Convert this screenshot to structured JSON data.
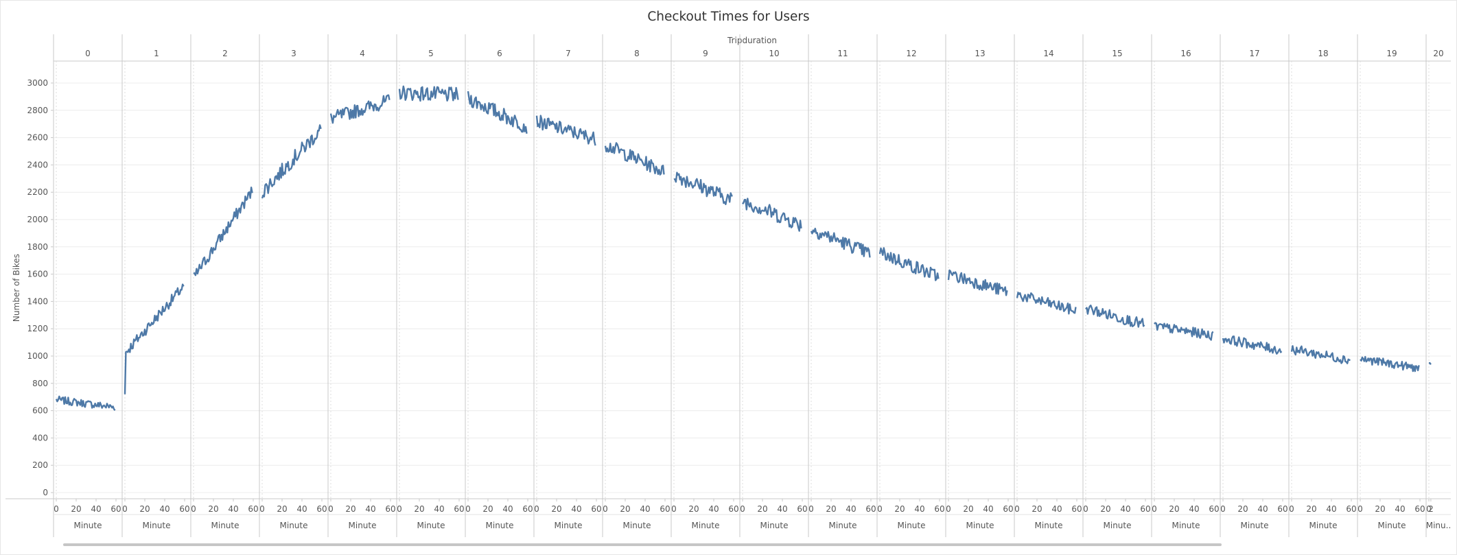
{
  "chart_data": {
    "type": "line",
    "title": "Checkout Times for Users",
    "column_header": "Tripduration",
    "ylabel": "Number of Bikes",
    "xlabel": "Minute",
    "last_panel_xlabel": "Minu..",
    "ylim": [
      0,
      3000
    ],
    "yticks": [
      0,
      200,
      400,
      600,
      800,
      1000,
      1200,
      1400,
      1600,
      1800,
      2000,
      2200,
      2400,
      2600,
      2800,
      3000
    ],
    "xticks": [
      0,
      20,
      40,
      60
    ],
    "last_panel_xticks": [
      0,
      2
    ],
    "color": "#4e79a7",
    "panels": [
      {
        "duration": "0",
        "start": 680,
        "end": 625,
        "mean": 665,
        "noise": 28
      },
      {
        "duration": "1",
        "start": 1020,
        "end": 1510,
        "mean": null,
        "noise": 40
      },
      {
        "duration": "2",
        "start": 1570,
        "end": 2210,
        "mean": null,
        "noise": 45
      },
      {
        "duration": "3",
        "start": 2200,
        "end": 2660,
        "mean": null,
        "noise": 55
      },
      {
        "duration": "4",
        "start": 2740,
        "end": 2870,
        "mean": null,
        "noise": 50
      },
      {
        "duration": "5",
        "start": 2930,
        "end": 2910,
        "mean": 2910,
        "noise": 55
      },
      {
        "duration": "6",
        "start": 2890,
        "end": 2680,
        "mean": null,
        "noise": 55
      },
      {
        "duration": "7",
        "start": 2720,
        "end": 2590,
        "mean": null,
        "noise": 50
      },
      {
        "duration": "8",
        "start": 2550,
        "end": 2350,
        "mean": null,
        "noise": 50
      },
      {
        "duration": "9",
        "start": 2330,
        "end": 2140,
        "mean": null,
        "noise": 55
      },
      {
        "duration": "10",
        "start": 2140,
        "end": 1960,
        "mean": null,
        "noise": 55
      },
      {
        "duration": "11",
        "start": 1930,
        "end": 1750,
        "mean": null,
        "noise": 50
      },
      {
        "duration": "12",
        "start": 1760,
        "end": 1580,
        "mean": null,
        "noise": 50
      },
      {
        "duration": "13",
        "start": 1600,
        "end": 1470,
        "mean": null,
        "noise": 45
      },
      {
        "duration": "14",
        "start": 1450,
        "end": 1330,
        "mean": null,
        "noise": 40
      },
      {
        "duration": "15",
        "start": 1350,
        "end": 1230,
        "mean": null,
        "noise": 40
      },
      {
        "duration": "16",
        "start": 1220,
        "end": 1150,
        "mean": null,
        "noise": 35
      },
      {
        "duration": "17",
        "start": 1130,
        "end": 1040,
        "mean": null,
        "noise": 35
      },
      {
        "duration": "18",
        "start": 1050,
        "end": 970,
        "mean": null,
        "noise": 35
      },
      {
        "duration": "19",
        "start": 980,
        "end": 910,
        "mean": null,
        "noise": 30
      },
      {
        "duration": "20",
        "start": 920,
        "end": 880,
        "mean": null,
        "noise": 30,
        "minutes_shown": 3
      }
    ]
  }
}
